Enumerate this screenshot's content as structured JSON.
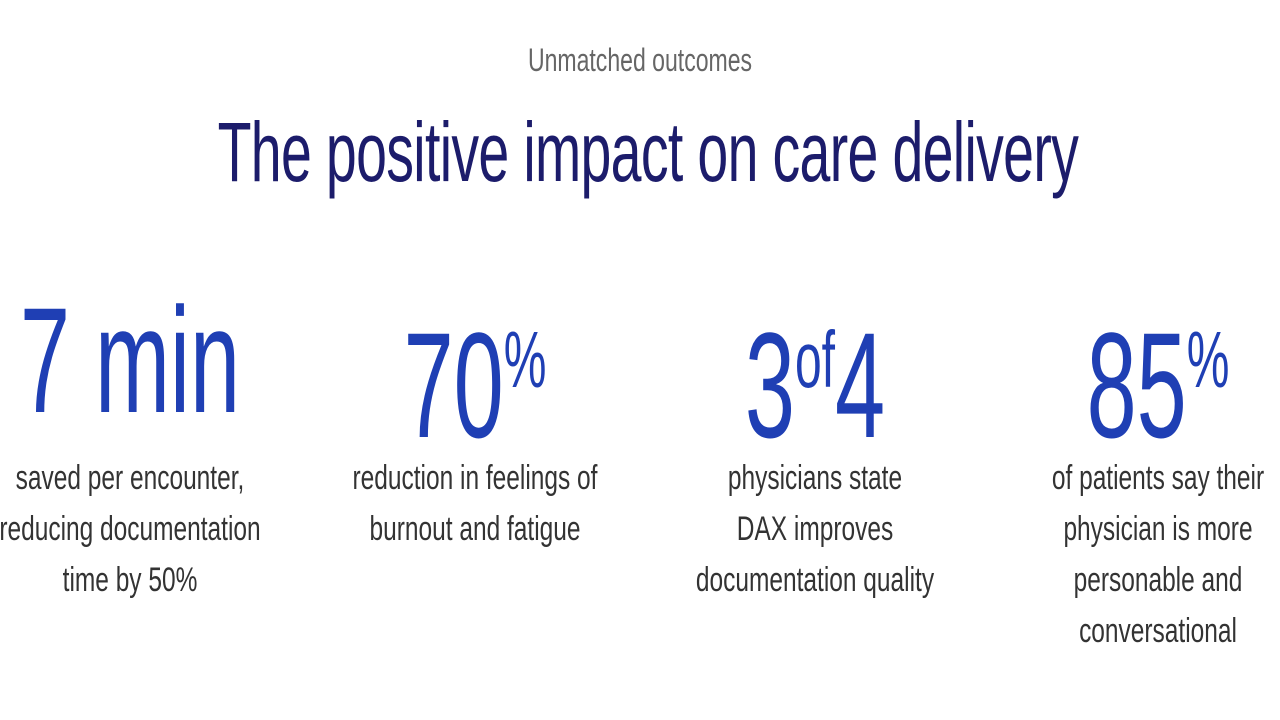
{
  "eyebrow": "Unmatched outcomes",
  "title": "The positive impact on care delivery",
  "stats": [
    {
      "main": "7 min",
      "lines": [
        "saved per encounter,",
        "reducing documentation",
        "time by 50%"
      ]
    },
    {
      "main": "70",
      "sup": "%",
      "lines": [
        "reduction in feelings of",
        "burnout and fatigue"
      ]
    },
    {
      "main": "3",
      "sup": "of",
      "tail": "4",
      "lines": [
        "physicians state",
        "DAX improves",
        "documentation quality"
      ]
    },
    {
      "main": "85",
      "sup": "%",
      "lines": [
        "of patients say their",
        "physician is more",
        "personable and",
        "conversational"
      ]
    }
  ]
}
